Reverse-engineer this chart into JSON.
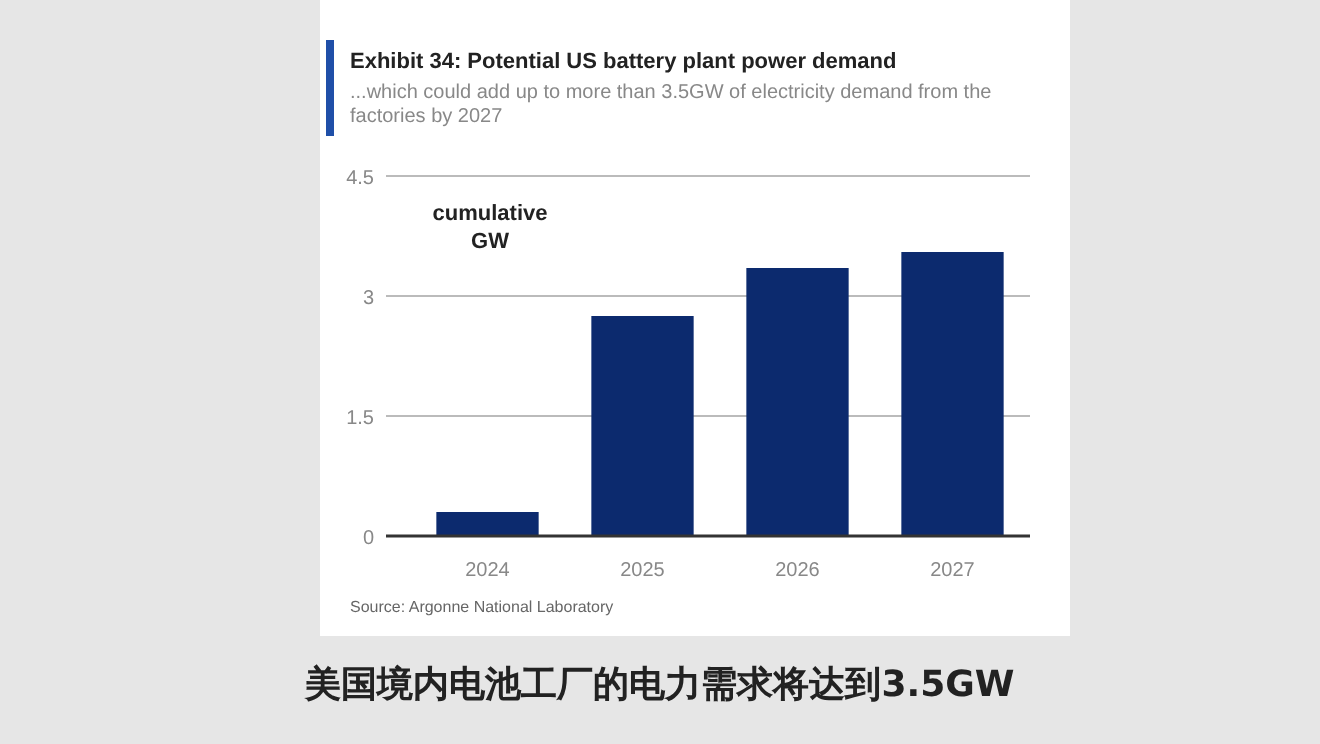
{
  "chart_data": {
    "type": "bar",
    "title": "Exhibit 34: Potential US battery plant power demand",
    "subtitle": "...which could add up to more than 3.5GW of electricity demand from the factories by 2027",
    "ylabel": "cumulative GW",
    "categories": [
      "2024",
      "2025",
      "2026",
      "2027"
    ],
    "values": [
      0.3,
      2.75,
      3.35,
      3.55
    ],
    "color": "#0c2a6e",
    "ylim": [
      0,
      4.5
    ],
    "yticks": [
      0,
      1.5,
      3,
      4.5
    ],
    "grid": "y",
    "annotations": [
      "Source: Argonne National Laboratory",
      "美国境内电池工厂的电力需求将达到3.5GW"
    ]
  }
}
